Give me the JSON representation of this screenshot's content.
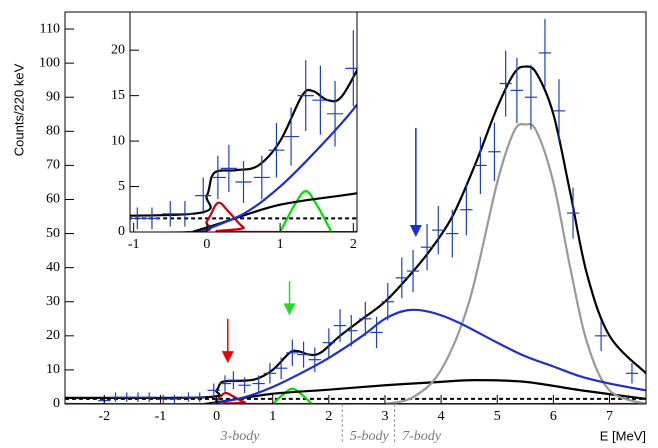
{
  "chart_data": [
    {
      "type": "scatter",
      "xlabel": "E [MeV]",
      "ylabel": "Counts/220 keV",
      "xlim": [
        -2.7,
        7.65
      ],
      "ylim": [
        0,
        115
      ],
      "xticks": [
        -2,
        -1,
        0,
        1,
        2,
        3,
        4,
        5,
        6,
        7
      ],
      "yticks": [
        0,
        10,
        20,
        30,
        40,
        50,
        60,
        70,
        80,
        90,
        100,
        110
      ],
      "data": {
        "color": "#1f3fbf",
        "xerr": 0.11,
        "x": [
          -2.0,
          -1.8,
          -1.6,
          -1.4,
          -1.2,
          -0.95,
          -0.75,
          -0.5,
          -0.3,
          -0.05,
          0.15,
          0.3,
          0.5,
          0.75,
          0.95,
          1.15,
          1.35,
          1.55,
          1.75,
          2.0,
          2.2,
          2.4,
          2.65,
          2.85,
          3.05,
          3.3,
          3.5,
          3.75,
          3.95,
          4.2,
          4.45,
          4.7,
          4.95,
          5.15,
          5.35,
          5.6,
          5.85,
          6.1,
          6.35,
          6.85,
          7.4
        ],
        "values": [
          1,
          2,
          2,
          2,
          2,
          1.5,
          1.5,
          2,
          2,
          4,
          6,
          7,
          5.5,
          6,
          9,
          10.5,
          15,
          14.5,
          13,
          18,
          23,
          21.5,
          25,
          21,
          30,
          37,
          39,
          46,
          51,
          50,
          57,
          70,
          74,
          94,
          92,
          90,
          103,
          86,
          56,
          20,
          9
        ],
        "errors": [
          1,
          1.4,
          1.4,
          1.4,
          1.4,
          1.2,
          1.2,
          1.4,
          1.4,
          2,
          2.4,
          2.6,
          2.3,
          2.4,
          3,
          3.2,
          3.9,
          3.8,
          3.6,
          4.2,
          4.8,
          4.6,
          5,
          4.6,
          5.5,
          6,
          6.2,
          6.8,
          7.1,
          7,
          7.5,
          8.4,
          8.6,
          9.7,
          9.6,
          9.5,
          10,
          9.3,
          7.5,
          4.5,
          3
        ]
      },
      "curves": [
        {
          "color": "#000000",
          "dash": true,
          "x": [
            -2.7,
            7.65
          ],
          "values": [
            1.5,
            1.5
          ]
        },
        {
          "color": "#cc0000",
          "x": [
            -2.7,
            -0.2,
            0.0,
            0.15,
            0.3,
            0.5,
            0.7,
            7.65
          ],
          "values": [
            0,
            0,
            1.2,
            3.2,
            2.2,
            0.5,
            0,
            0
          ]
        },
        {
          "color": "#00dd00",
          "x": [
            1.0,
            1.2,
            1.35,
            1.5,
            1.7
          ],
          "values": [
            0,
            3,
            4.5,
            3,
            0
          ]
        },
        {
          "color": "#000000",
          "x": [
            -0.2,
            0.2,
            1.0,
            2.0,
            3.0,
            4.0,
            4.6,
            5.5,
            6.5,
            7.65
          ],
          "values": [
            0,
            1,
            3,
            4.2,
            5.5,
            6.5,
            7,
            6.5,
            4,
            1.5
          ]
        },
        {
          "color": "#999999",
          "x": [
            3.0,
            3.5,
            4.0,
            4.5,
            5.0,
            5.3,
            5.5,
            5.7,
            6.0,
            6.3,
            6.6,
            7.0,
            7.65
          ],
          "values": [
            0,
            2,
            10,
            30,
            65,
            80,
            82,
            80,
            65,
            40,
            18,
            4,
            0
          ]
        },
        {
          "color": "#1f2fcc",
          "x": [
            -0.1,
            0.5,
            1.0,
            1.5,
            2.0,
            2.6,
            3.0,
            3.4,
            3.8,
            4.3,
            5.0,
            5.5,
            6.0,
            6.5,
            7.0,
            7.65
          ],
          "values": [
            0,
            2,
            5,
            9,
            13.5,
            20,
            25,
            27.5,
            27,
            24,
            18,
            14,
            11,
            8,
            6,
            4
          ]
        },
        {
          "color": "#000000",
          "x": [
            -2.7,
            -0.2,
            0.0,
            0.1,
            0.4,
            0.7,
            1.0,
            1.3,
            1.45,
            1.65,
            1.85,
            2.2,
            2.6,
            3.0,
            3.4,
            3.8,
            4.2,
            4.6,
            5.0,
            5.3,
            5.5,
            5.7,
            6.0,
            6.3,
            6.6,
            7.0,
            7.65
          ],
          "values": [
            1.8,
            2,
            4,
            6.5,
            6.8,
            7.3,
            10,
            15,
            15.5,
            14.5,
            15,
            20,
            25,
            30,
            37,
            45,
            55,
            70,
            87,
            97,
            99,
            97,
            85,
            62,
            38,
            20,
            9
          ]
        }
      ],
      "arrows": [
        {
          "color": "#ee0000",
          "x": 0.2,
          "tail": 25,
          "tip": 12
        },
        {
          "color": "#22dd22",
          "x": 1.3,
          "tail": 36,
          "tip": 26
        },
        {
          "color": "#1a2fd0",
          "x": 3.55,
          "tail": 81,
          "tip": 49
        }
      ],
      "thresholds": [
        {
          "label": "3-body"
        },
        {
          "label": "5-body",
          "x": 2.24
        },
        {
          "label": "7-body",
          "x": 3.17
        }
      ]
    },
    {
      "type": "inset",
      "xlim": [
        -1.05,
        2.05
      ],
      "ylim": [
        0,
        24.2
      ],
      "xticks": [
        -1,
        0,
        1,
        2
      ],
      "yticks": [
        0,
        5,
        10,
        15,
        20
      ]
    }
  ]
}
